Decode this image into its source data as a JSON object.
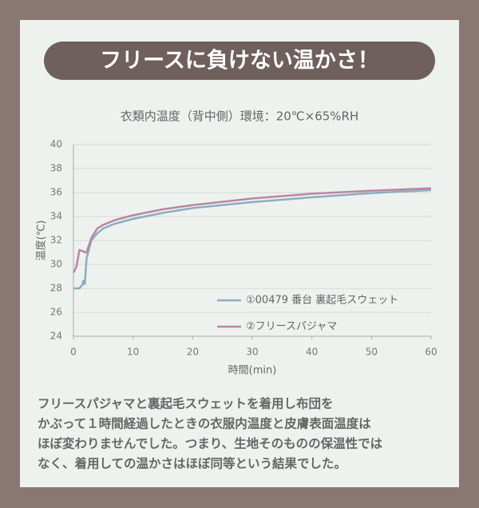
{
  "chart_data": {
    "type": "line",
    "banner": "フリースに負けない温かさ！",
    "title": "衣類内温度（背中側）環境：20℃×65%RH",
    "ylabel": "温度(℃)",
    "xlabel": "時間(min)",
    "x": [
      0,
      0.5,
      1,
      1.5,
      1.7,
      1.9,
      2.2,
      3,
      4,
      5,
      7,
      10,
      15,
      20,
      30,
      40,
      50,
      60
    ],
    "series": [
      {
        "name": "①00479 番台 裏起毛スウェット",
        "color": "#8aaec2",
        "values": [
          28,
          28,
          28,
          28.3,
          28.7,
          28.3,
          30.5,
          32,
          32.6,
          33,
          33.4,
          33.8,
          34.3,
          34.7,
          35.2,
          35.6,
          35.95,
          36.2
        ]
      },
      {
        "name": "②フリースパジャマ",
        "color": "#bb86a0",
        "values": [
          29.3,
          29.8,
          31.2,
          31.1,
          31.1,
          31.0,
          31.0,
          32.2,
          33,
          33.3,
          33.7,
          34.1,
          34.6,
          34.95,
          35.5,
          35.9,
          36.15,
          36.35
        ]
      }
    ],
    "xlim": [
      0,
      60
    ],
    "xticks": [
      0,
      10,
      20,
      30,
      40,
      50,
      60
    ],
    "ylim": [
      24,
      40
    ],
    "yticks": [
      24,
      26,
      28,
      30,
      32,
      34,
      36,
      38,
      40
    ],
    "grid": true,
    "legend": "lower right",
    "annotations": [
      "フリースパジャマと裏起毛スウェットを着用し布団を",
      "かぶって１時間経過したときの衣服内温度と皮膚表面温度は",
      "ほぼ変わりませんでした。つまり、生地そのものの保温性では",
      "なく、着用しての温かさはほぼ同等という結果でした。"
    ]
  }
}
